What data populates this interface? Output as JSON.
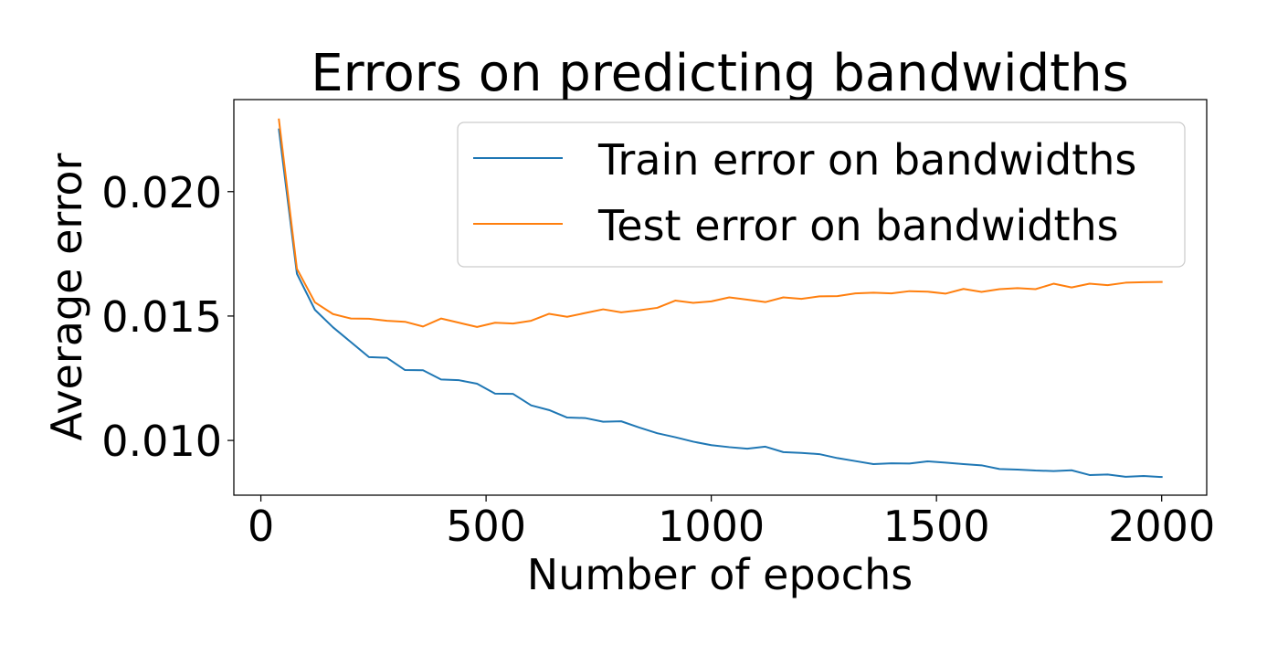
{
  "chart_data": {
    "type": "line",
    "title": "Errors on predicting bandwidths",
    "xlabel": "Number of epochs",
    "ylabel": "Average error",
    "xlim": [
      -60,
      2100
    ],
    "ylim": [
      0.0078,
      0.0237
    ],
    "xticks": [
      0,
      500,
      1000,
      1500,
      2000
    ],
    "xtick_labels": [
      "0",
      "500",
      "1000",
      "1500",
      "2000"
    ],
    "yticks": [
      0.01,
      0.015,
      0.02
    ],
    "ytick_labels": [
      "0.010",
      "0.015",
      "0.020"
    ],
    "grid": false,
    "legend_position": "top-right",
    "x": [
      40,
      80,
      120,
      160,
      200,
      240,
      280,
      320,
      360,
      400,
      440,
      480,
      520,
      560,
      600,
      640,
      680,
      720,
      760,
      800,
      840,
      880,
      920,
      960,
      1000,
      1040,
      1080,
      1120,
      1160,
      1200,
      1240,
      1280,
      1320,
      1360,
      1400,
      1440,
      1480,
      1520,
      1560,
      1600,
      1640,
      1680,
      1720,
      1760,
      1800,
      1840,
      1880,
      1920,
      1960,
      2000
    ],
    "series": [
      {
        "name": "Train error on bandwidths",
        "color": "#1f77b4",
        "values": [
          0.0225,
          0.0167,
          0.01525,
          0.01455,
          0.01395,
          0.01335,
          0.01332,
          0.01283,
          0.01282,
          0.01245,
          0.01242,
          0.01228,
          0.01188,
          0.01187,
          0.01141,
          0.01122,
          0.01092,
          0.0109,
          0.01075,
          0.01077,
          0.01052,
          0.01029,
          0.01013,
          0.00995,
          0.00981,
          0.00973,
          0.00967,
          0.00975,
          0.00953,
          0.0095,
          0.00945,
          0.00929,
          0.00917,
          0.00905,
          0.00908,
          0.00907,
          0.00916,
          0.00911,
          0.00905,
          0.009,
          0.00885,
          0.00883,
          0.00879,
          0.00877,
          0.0088,
          0.00861,
          0.00863,
          0.00854,
          0.00857,
          0.00853
        ]
      },
      {
        "name": "Test error on bandwidths",
        "color": "#ff7f0e",
        "values": [
          0.0229,
          0.0169,
          0.01555,
          0.01508,
          0.0149,
          0.01489,
          0.01481,
          0.01477,
          0.01458,
          0.0149,
          0.01473,
          0.01456,
          0.01473,
          0.0147,
          0.01481,
          0.01509,
          0.01497,
          0.01512,
          0.01527,
          0.01515,
          0.01523,
          0.01533,
          0.01562,
          0.01553,
          0.01559,
          0.01575,
          0.01566,
          0.01556,
          0.01575,
          0.01569,
          0.01579,
          0.0158,
          0.01591,
          0.01594,
          0.01591,
          0.016,
          0.01598,
          0.0159,
          0.01609,
          0.01597,
          0.01608,
          0.01612,
          0.01608,
          0.0163,
          0.01615,
          0.0163,
          0.01624,
          0.01634,
          0.01636,
          0.01637
        ]
      }
    ]
  }
}
